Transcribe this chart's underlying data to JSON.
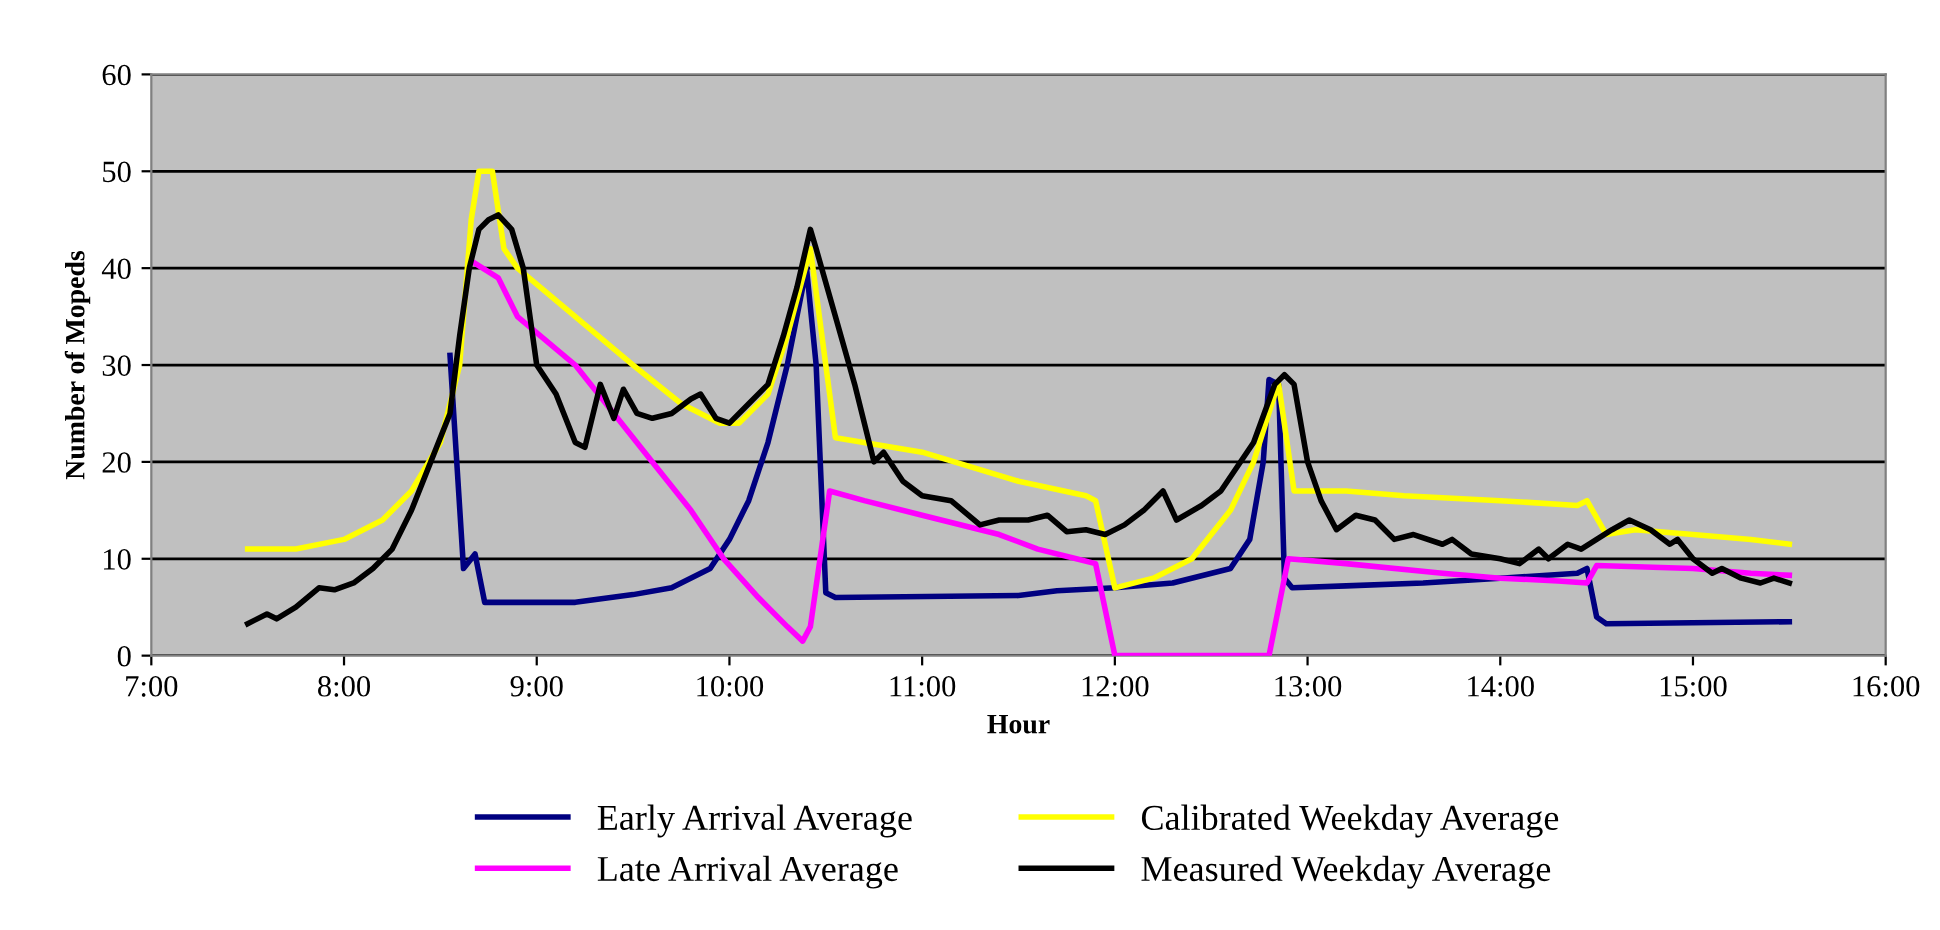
{
  "chart_data": {
    "type": "line",
    "xlabel": "Hour",
    "ylabel": "Number of Mopeds",
    "xlim": [
      7,
      16
    ],
    "xticks": [
      {
        "value": 7,
        "label": "7:00"
      },
      {
        "value": 8,
        "label": "8:00"
      },
      {
        "value": 9,
        "label": "9:00"
      },
      {
        "value": 10,
        "label": "10:00"
      },
      {
        "value": 11,
        "label": "11:00"
      },
      {
        "value": 12,
        "label": "12:00"
      },
      {
        "value": 13,
        "label": "13:00"
      },
      {
        "value": 14,
        "label": "14:00"
      },
      {
        "value": 15,
        "label": "15:00"
      },
      {
        "value": 16,
        "label": "16:00"
      }
    ],
    "ylim": [
      0,
      60
    ],
    "yticks": [
      0,
      10,
      20,
      30,
      40,
      50,
      60
    ],
    "grid": "y",
    "legend": "bottom",
    "marker": "none",
    "line_style": "solid",
    "series": [
      {
        "name": "Early Arrival Average",
        "color": "#000080",
        "x": [
          8.55,
          8.62,
          8.68,
          8.73,
          9.2,
          9.5,
          9.7,
          9.9,
          10.0,
          10.1,
          10.2,
          10.3,
          10.4,
          10.45,
          10.5,
          10.55,
          11.5,
          11.7,
          12.0,
          12.3,
          12.6,
          12.7,
          12.77,
          12.8,
          12.85,
          12.88,
          12.92,
          13.2,
          13.6,
          14.0,
          14.4,
          14.45,
          14.5,
          14.55,
          15.5
        ],
        "values": [
          31,
          9,
          10.5,
          5.5,
          5.5,
          6.3,
          7,
          9,
          12,
          16,
          22,
          30,
          40,
          30,
          6.5,
          6,
          6.2,
          6.7,
          7,
          7.5,
          9,
          12,
          20,
          28.5,
          28,
          8,
          7,
          7.2,
          7.5,
          8,
          8.5,
          9,
          4,
          3.3,
          3.5
        ]
      },
      {
        "name": "Late Arrival Average",
        "color": "#ff00ff",
        "x": [
          8.68,
          8.8,
          8.9,
          9.2,
          9.6,
          9.8,
          9.97,
          10.15,
          10.3,
          10.38,
          10.42,
          10.47,
          10.52,
          10.7,
          11.0,
          11.4,
          11.6,
          11.8,
          11.9,
          12.0,
          12.8,
          12.85,
          12.9,
          13.2,
          13.7,
          14.0,
          14.3,
          14.45,
          14.5,
          15.0,
          15.3,
          15.5
        ],
        "values": [
          40.5,
          39,
          35,
          30,
          20,
          15,
          10,
          6,
          3,
          1.5,
          3,
          10,
          17,
          16,
          14.5,
          12.5,
          11,
          10,
          9.5,
          0,
          0,
          5,
          10,
          9.5,
          8.5,
          8,
          7.7,
          7.5,
          9.3,
          9,
          8.5,
          8.3
        ]
      },
      {
        "name": "Calibrated Weekday Average",
        "color": "#ffff00",
        "x": [
          7.5,
          7.75,
          8.0,
          8.2,
          8.35,
          8.5,
          8.6,
          8.66,
          8.7,
          8.77,
          8.83,
          8.9,
          9.2,
          9.5,
          9.75,
          9.95,
          10.05,
          10.2,
          10.3,
          10.42,
          10.5,
          10.55,
          11.0,
          11.5,
          11.85,
          11.9,
          12.0,
          12.2,
          12.4,
          12.6,
          12.72,
          12.83,
          12.85,
          12.93,
          13.2,
          13.5,
          14.0,
          14.4,
          14.45,
          14.55,
          14.7,
          15.0,
          15.3,
          15.5
        ],
        "values": [
          11,
          11,
          12,
          14,
          17,
          22,
          30,
          45,
          50,
          50,
          42,
          40,
          35,
          30,
          26,
          24,
          24,
          27,
          33,
          42,
          30,
          22.5,
          21,
          18,
          16.5,
          16,
          7,
          8,
          10,
          15,
          20,
          27,
          28,
          17,
          17,
          16.5,
          16,
          15.5,
          16,
          12.5,
          13,
          12.5,
          12,
          11.5
        ]
      },
      {
        "name": "Measured Weekday Average",
        "color": "#000000",
        "x": [
          7.5,
          7.6,
          7.65,
          7.75,
          7.87,
          7.95,
          8.05,
          8.15,
          8.25,
          8.35,
          8.45,
          8.55,
          8.6,
          8.65,
          8.7,
          8.75,
          8.8,
          8.87,
          8.93,
          9.0,
          9.1,
          9.2,
          9.25,
          9.33,
          9.4,
          9.45,
          9.52,
          9.6,
          9.7,
          9.8,
          9.85,
          9.93,
          10.0,
          10.1,
          10.2,
          10.28,
          10.35,
          10.42,
          10.45,
          10.55,
          10.65,
          10.75,
          10.8,
          10.9,
          11.0,
          11.15,
          11.3,
          11.4,
          11.55,
          11.65,
          11.75,
          11.85,
          11.95,
          12.05,
          12.15,
          12.25,
          12.32,
          12.45,
          12.55,
          12.72,
          12.83,
          12.88,
          12.93,
          13.0,
          13.07,
          13.15,
          13.25,
          13.35,
          13.45,
          13.55,
          13.7,
          13.75,
          13.85,
          14.0,
          14.1,
          14.2,
          14.25,
          14.35,
          14.42,
          14.5,
          14.58,
          14.67,
          14.78,
          14.88,
          14.92,
          15.0,
          15.1,
          15.15,
          15.25,
          15.35,
          15.42,
          15.5
        ],
        "values": [
          3.3,
          4.3,
          3.8,
          5,
          7,
          6.8,
          7.5,
          9,
          11,
          15,
          20,
          25,
          33,
          40,
          44,
          45,
          45.5,
          44,
          40,
          30,
          27,
          22,
          21.5,
          28,
          24.5,
          27.5,
          25,
          24.5,
          25,
          26.5,
          27,
          24.5,
          24,
          26,
          28,
          33,
          38,
          44,
          42,
          35,
          28,
          20,
          21,
          18,
          16.5,
          16,
          13.5,
          14,
          14,
          14.5,
          12.8,
          13,
          12.5,
          13.5,
          15,
          17,
          14,
          15.5,
          17,
          22,
          28,
          29,
          28,
          20,
          16,
          13,
          14.5,
          14,
          12,
          12.5,
          11.5,
          12,
          10.5,
          10,
          9.5,
          11,
          10,
          11.5,
          11,
          12,
          13,
          14,
          13,
          11.5,
          12,
          10,
          8.5,
          9,
          8,
          7.5,
          8,
          7.5
        ]
      }
    ]
  }
}
